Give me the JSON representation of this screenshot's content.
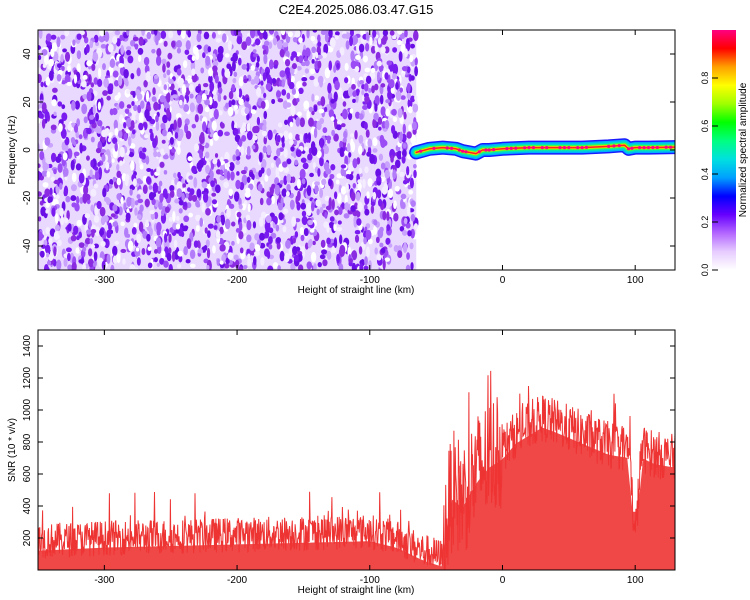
{
  "title": "C2E4.2025.086.03.47.G15",
  "chart_data": [
    {
      "type": "heatmap",
      "xlabel": "Height of straight line (km)",
      "ylabel": "Frequency (Hz)",
      "xlim": [
        -350,
        130
      ],
      "ylim": [
        -50,
        50
      ],
      "xticks": [
        -300,
        -200,
        -100,
        0,
        100
      ],
      "yticks": [
        -40,
        -20,
        0,
        20,
        40
      ],
      "noise_region_x": [
        -350,
        -65
      ],
      "signal_trace": {
        "x": [
          -65,
          -55,
          -45,
          -35,
          -30,
          -25,
          -20,
          -15,
          -10,
          0,
          20,
          40,
          60,
          80,
          92,
          95,
          100,
          110,
          130
        ],
        "y": [
          -1,
          0.5,
          1,
          0.5,
          -0.5,
          -1,
          -1.5,
          0,
          0,
          0.5,
          1,
          1,
          1,
          1.5,
          2,
          0.5,
          1,
          1,
          1.2
        ]
      },
      "colorbar": {
        "label": "Normalized spectral amplitude",
        "ticks": [
          "0.0",
          "0.2",
          "0.4",
          "0.6",
          "0.8"
        ],
        "range": [
          0,
          1
        ],
        "colors": [
          "#ffffff",
          "#e6ccff",
          "#b366ff",
          "#6600ff",
          "#0000ff",
          "#00a0ff",
          "#00e0e0",
          "#00ff80",
          "#00ff00",
          "#a0ff00",
          "#ffff00",
          "#ffa000",
          "#ff0000",
          "#ff0080"
        ]
      },
      "grid": false
    },
    {
      "type": "line",
      "xlabel": "Height of straight line (km)",
      "ylabel": "SNR (10 * v/v)",
      "xlim": [
        -350,
        130
      ],
      "ylim": [
        0,
        1500
      ],
      "xticks": [
        -300,
        -200,
        -100,
        0,
        100
      ],
      "yticks": [
        200,
        400,
        600,
        800,
        1000,
        1200,
        1400
      ],
      "series": [
        {
          "color": "#ee3333",
          "x": [
            -350,
            -300,
            -250,
            -200,
            -150,
            -100,
            -80,
            -60,
            -45,
            -42,
            -38,
            -30,
            -20,
            -10,
            0,
            10,
            20,
            30,
            40,
            60,
            80,
            95,
            100,
            105,
            115,
            130
          ],
          "y": [
            180,
            200,
            210,
            220,
            230,
            240,
            200,
            120,
            80,
            300,
            500,
            450,
            600,
            700,
            750,
            850,
            900,
            950,
            920,
            850,
            780,
            760,
            200,
            760,
            720,
            700
          ]
        }
      ],
      "grid": false
    }
  ]
}
